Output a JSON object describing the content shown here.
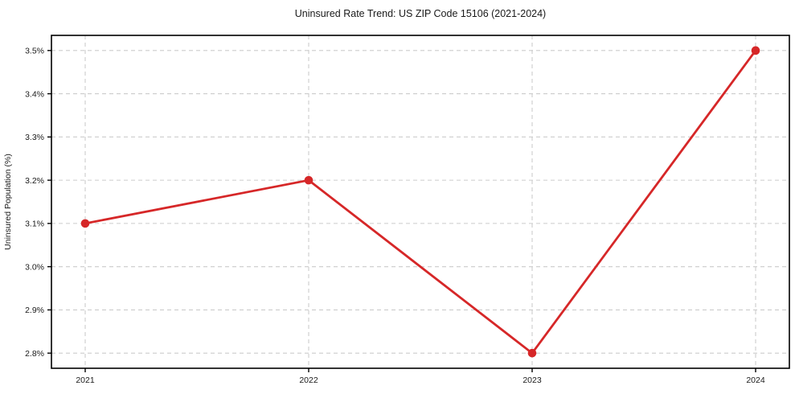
{
  "chart_data": {
    "type": "line",
    "title": "Uninsured Rate Trend: US ZIP Code 15106 (2021-2024)",
    "xlabel": "",
    "ylabel": "Uninsured Population (%)",
    "x": [
      "2021",
      "2022",
      "2023",
      "2024"
    ],
    "series": [
      {
        "name": "uninsured-rate",
        "values": [
          3.1,
          3.2,
          2.8,
          3.5
        ]
      }
    ],
    "yticks": [
      2.8,
      2.9,
      3.0,
      3.1,
      3.2,
      3.3,
      3.4,
      3.5
    ],
    "ytick_labels": [
      "2.8%",
      "2.9%",
      "3.0%",
      "3.1%",
      "3.2%",
      "3.3%",
      "3.4%",
      "3.5%"
    ],
    "xtick_labels": [
      "2021",
      "2022",
      "2023",
      "2024"
    ],
    "ylim": [
      2.765,
      3.535
    ],
    "grid": true,
    "legend_position": "none",
    "colors": {
      "line": "#d62728",
      "marker": "#d62728",
      "grid": "#cccccc",
      "axis": "#000000",
      "text": "#1a1a1a",
      "background": "#ffffff"
    }
  }
}
